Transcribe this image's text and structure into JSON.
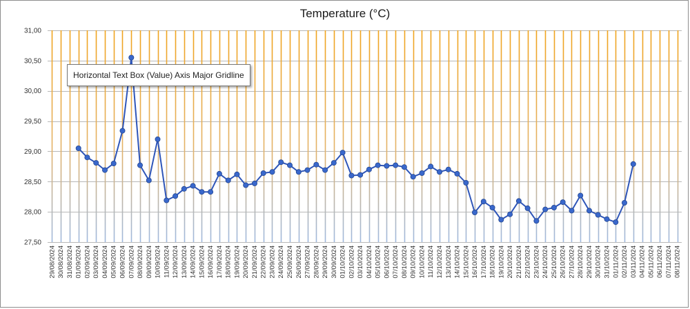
{
  "chart_data": {
    "type": "line",
    "title": "Temperature (°C)",
    "xlabel": "",
    "ylabel": "",
    "ylim": [
      27.5,
      31.0
    ],
    "yticks": [
      "27,50",
      "28,00",
      "28,50",
      "29,00",
      "29,50",
      "30,00",
      "30,50",
      "31,00"
    ],
    "grid": "vertical and horizontal, gradient from orange (top) to blue (bottom)",
    "categories": [
      "29/08/2024",
      "30/08/2024",
      "31/08/2024",
      "01/09/2024",
      "02/09/2024",
      "03/09/2024",
      "04/09/2024",
      "05/09/2024",
      "06/09/2024",
      "07/09/2024",
      "08/09/2024",
      "09/09/2024",
      "10/09/2024",
      "11/09/2024",
      "12/09/2024",
      "13/09/2024",
      "14/09/2024",
      "15/09/2024",
      "16/09/2024",
      "17/09/2024",
      "18/09/2024",
      "19/09/2024",
      "20/09/2024",
      "21/09/2024",
      "22/09/2024",
      "23/09/2024",
      "24/09/2024",
      "25/09/2024",
      "26/09/2024",
      "27/09/2024",
      "28/09/2024",
      "29/09/2024",
      "30/09/2024",
      "01/10/2024",
      "02/10/2024",
      "03/10/2024",
      "04/10/2024",
      "05/10/2024",
      "06/10/2024",
      "07/10/2024",
      "08/10/2024",
      "09/10/2024",
      "10/10/2024",
      "11/10/2024",
      "12/10/2024",
      "13/10/2024",
      "14/10/2024",
      "15/10/2024",
      "16/10/2024",
      "17/10/2024",
      "18/10/2024",
      "19/10/2024",
      "20/10/2024",
      "21/10/2024",
      "22/10/2024",
      "23/10/2024",
      "24/10/2024",
      "25/10/2024",
      "26/10/2024",
      "27/10/2024",
      "28/10/2024",
      "29/10/2024",
      "30/10/2024",
      "31/10/2024",
      "01/11/2024",
      "02/11/2024",
      "03/11/2024",
      "04/11/2024",
      "05/11/2024",
      "06/11/2024",
      "07/11/2024",
      "08/11/2024"
    ],
    "series": [
      {
        "name": "",
        "color": "#2e55b8",
        "values": [
          null,
          null,
          null,
          29.05,
          28.9,
          28.81,
          28.69,
          28.8,
          29.34,
          30.55,
          28.77,
          28.52,
          29.2,
          28.19,
          28.26,
          28.38,
          28.43,
          28.33,
          28.33,
          28.63,
          28.52,
          28.62,
          28.44,
          28.47,
          28.64,
          28.66,
          28.82,
          28.77,
          28.66,
          28.69,
          28.78,
          28.69,
          28.81,
          28.98,
          28.6,
          28.61,
          28.7,
          28.77,
          28.76,
          28.77,
          28.74,
          28.58,
          28.64,
          28.75,
          28.66,
          28.7,
          28.63,
          28.48,
          27.99,
          28.17,
          28.07,
          27.87,
          27.96,
          28.18,
          28.06,
          27.85,
          28.04,
          28.07,
          28.16,
          28.02,
          28.27,
          28.02,
          27.95,
          27.88,
          27.83,
          28.15,
          28.79,
          null,
          null,
          null,
          null,
          null
        ]
      }
    ]
  },
  "tooltip": {
    "text": "Horizontal Text Box (Value) Axis Major Gridline"
  },
  "colors": {
    "grid_top": "#f0a31c",
    "grid_bottom": "#9fb9df",
    "line": "#2e55b8",
    "marker_fill": "#3a68cc"
  }
}
